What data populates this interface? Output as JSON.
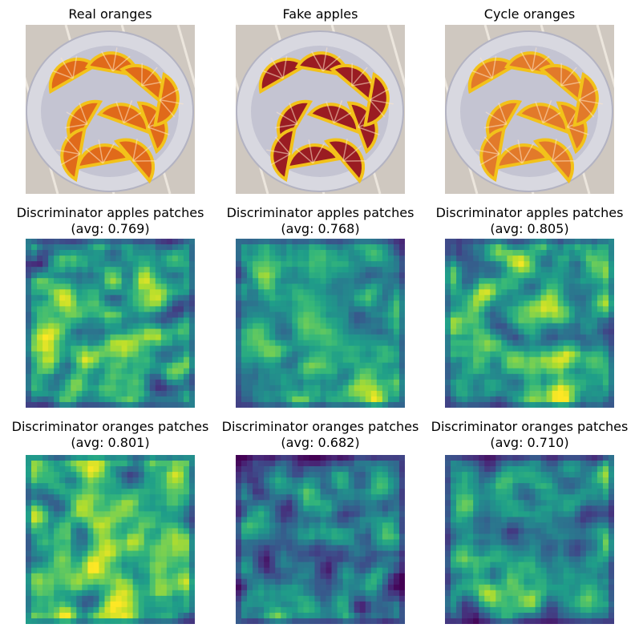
{
  "figure": {
    "panels": [
      {
        "row": 0,
        "col": 0,
        "kind": "image",
        "title": "Real oranges",
        "subtitle": "",
        "icon": "orange-slices-photo",
        "tint": "#e06a1a"
      },
      {
        "row": 0,
        "col": 1,
        "kind": "image",
        "title": "Fake apples",
        "subtitle": "",
        "icon": "red-slices-photo",
        "tint": "#9a1c22"
      },
      {
        "row": 0,
        "col": 2,
        "kind": "image",
        "title": "Cycle oranges",
        "subtitle": "",
        "icon": "orange-slices-photo",
        "tint": "#e27a2a"
      },
      {
        "row": 1,
        "col": 0,
        "kind": "heatmap",
        "title": "Discriminator apples patches",
        "subtitle": "(avg: 0.769)",
        "avg": 0.769,
        "seed": 11
      },
      {
        "row": 1,
        "col": 1,
        "kind": "heatmap",
        "title": "Discriminator apples patches",
        "subtitle": "(avg: 0.768)",
        "avg": 0.768,
        "seed": 23
      },
      {
        "row": 1,
        "col": 2,
        "kind": "heatmap",
        "title": "Discriminator apples patches",
        "subtitle": "(avg: 0.805)",
        "avg": 0.805,
        "seed": 37
      },
      {
        "row": 2,
        "col": 0,
        "kind": "heatmap",
        "title": "Discriminator oranges patches",
        "subtitle": "(avg: 0.801)",
        "avg": 0.801,
        "seed": 41
      },
      {
        "row": 2,
        "col": 1,
        "kind": "heatmap",
        "title": "Discriminator oranges patches",
        "subtitle": "(avg: 0.682)",
        "avg": 0.682,
        "seed": 53
      },
      {
        "row": 2,
        "col": 2,
        "kind": "heatmap",
        "title": "Discriminator oranges patches",
        "subtitle": "(avg: 0.710)",
        "avg": 0.71,
        "seed": 67
      }
    ]
  },
  "chart_data": [
    {
      "type": "heatmap",
      "title": "Discriminator apples patches",
      "subtitle": "(avg: 0.769)",
      "avg": 0.769,
      "colormap": "viridis",
      "grid": [
        30,
        30
      ]
    },
    {
      "type": "heatmap",
      "title": "Discriminator apples patches",
      "subtitle": "(avg: 0.768)",
      "avg": 0.768,
      "colormap": "viridis",
      "grid": [
        30,
        30
      ]
    },
    {
      "type": "heatmap",
      "title": "Discriminator apples patches",
      "subtitle": "(avg: 0.805)",
      "avg": 0.805,
      "colormap": "viridis",
      "grid": [
        30,
        30
      ]
    },
    {
      "type": "heatmap",
      "title": "Discriminator oranges patches",
      "subtitle": "(avg: 0.801)",
      "avg": 0.801,
      "colormap": "viridis",
      "grid": [
        30,
        30
      ]
    },
    {
      "type": "heatmap",
      "title": "Discriminator oranges patches",
      "subtitle": "(avg: 0.682)",
      "avg": 0.682,
      "colormap": "viridis",
      "grid": [
        30,
        30
      ]
    },
    {
      "type": "heatmap",
      "title": "Discriminator oranges patches",
      "subtitle": "(avg: 0.710)",
      "avg": 0.71,
      "colormap": "viridis",
      "grid": [
        30,
        30
      ]
    }
  ]
}
